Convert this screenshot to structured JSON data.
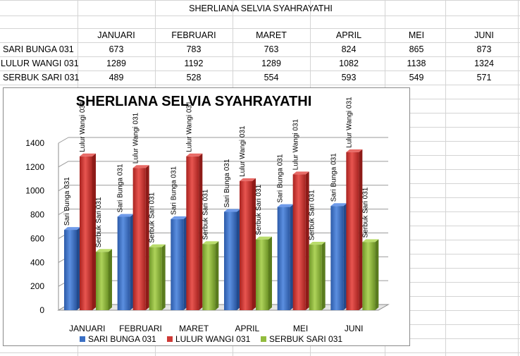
{
  "sheet": {
    "title": "SHERLIANA SELVIA SYAHRAYATHI",
    "months": [
      "JANUARI",
      "FEBRUARI",
      "MARET",
      "APRIL",
      "MEI",
      "JUNI"
    ],
    "rows": [
      {
        "label": "SARI BUNGA 031",
        "values": [
          "673",
          "783",
          "763",
          "824",
          "865",
          "873"
        ]
      },
      {
        "label": "LULUR WANGI 031",
        "values": [
          "1289",
          "1192",
          "1289",
          "1082",
          "1138",
          "1324"
        ]
      },
      {
        "label": "SERBUK SARI 031",
        "values": [
          "489",
          "528",
          "554",
          "593",
          "549",
          "571"
        ]
      }
    ]
  },
  "colors": {
    "blue": "#3a6fc4",
    "red": "#cf3a36",
    "green": "#92bc3e"
  },
  "chart_data": {
    "type": "bar",
    "title": "SHERLIANA SELVIA SYAHRAYATHI",
    "categories": [
      "JANUARI",
      "FEBRUARI",
      "MARET",
      "APRIL",
      "MEI",
      "JUNI"
    ],
    "series": [
      {
        "name": "SARI BUNGA  031",
        "label": "Sari Bunga 031",
        "values": [
          673,
          783,
          763,
          824,
          865,
          873
        ]
      },
      {
        "name": "LULUR WANGI 031",
        "label": "Lulur Wangi 031",
        "values": [
          1289,
          1192,
          1289,
          1082,
          1138,
          1324
        ]
      },
      {
        "name": "SERBUK SARI 031",
        "label": "Serbuk Sari 031",
        "values": [
          489,
          528,
          554,
          593,
          549,
          571
        ]
      }
    ],
    "yticks": [
      0,
      200,
      400,
      600,
      800,
      1000,
      1200,
      1400
    ],
    "ylim": [
      0,
      1400
    ],
    "grid": true,
    "legend": "bottom",
    "xlabel": "",
    "ylabel": ""
  }
}
